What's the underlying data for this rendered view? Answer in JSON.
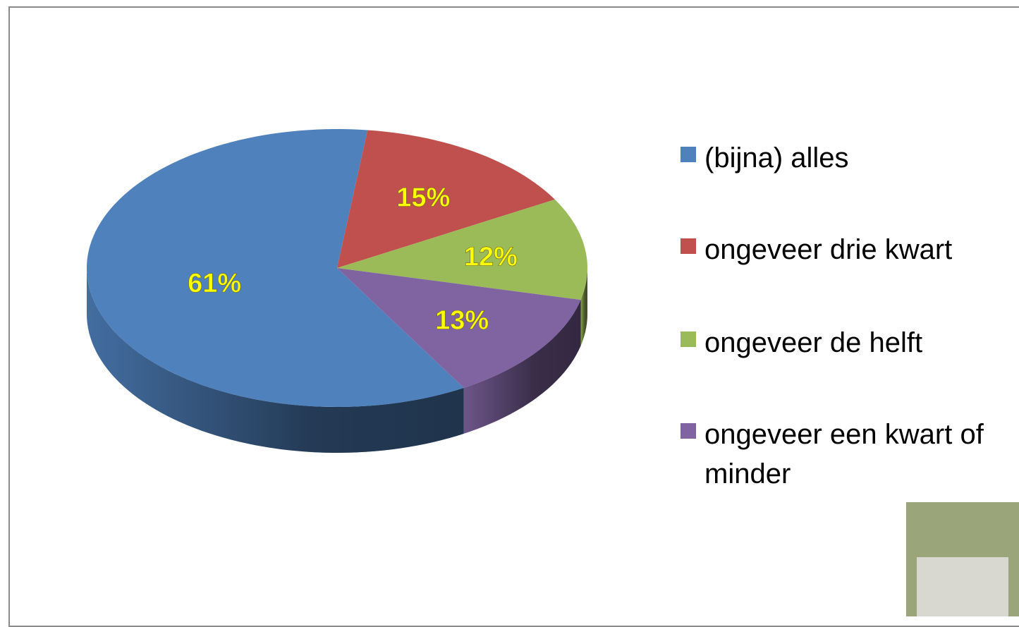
{
  "chart_data": {
    "type": "pie",
    "categories": [
      "(bijna) alles",
      "ongeveer drie kwart",
      "ongeveer de helft",
      "ongeveer een kwart of minder"
    ],
    "values": [
      61,
      15,
      12,
      13
    ],
    "value_labels": [
      "61%",
      "15%",
      "12%",
      "13%"
    ],
    "colors": [
      "#4f81bd",
      "#c0504d",
      "#9bbb59",
      "#8064a2"
    ],
    "legend": "right"
  }
}
